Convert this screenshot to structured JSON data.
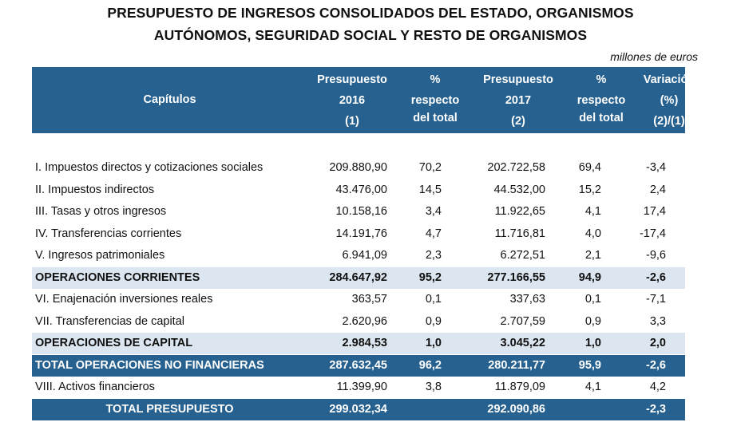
{
  "title_lines": [
    "PRESUPUESTO DE INGRESOS CONSOLIDADOS DEL ESTADO, ORGANISMOS",
    "AUTÓNOMOS, SEGURIDAD SOCIAL Y RESTO DE ORGANISMOS"
  ],
  "units": "millones de euros",
  "colors": {
    "header": "#27618f",
    "subtotal": "#dce6f0"
  },
  "headers": [
    [
      "Capítulos"
    ],
    [
      "Presupuesto",
      "2016",
      "(1)"
    ],
    [
      "%",
      "respecto",
      "del total"
    ],
    [
      "Presupuesto",
      "2017",
      "(2)"
    ],
    [
      "%",
      "respecto",
      "del total"
    ],
    [
      "Variación",
      "(%)",
      "(2)/(1)"
    ]
  ],
  "rows": [
    {
      "label": "I. Impuestos directos y cotizaciones sociales",
      "v": [
        "209.880,90",
        "70,2",
        "202.722,58",
        "69,4",
        "-3,4"
      ]
    },
    {
      "label": "II. Impuestos indirectos",
      "v": [
        "43.476,00",
        "14,5",
        "44.532,00",
        "15,2",
        "2,4"
      ]
    },
    {
      "label": "III. Tasas y otros ingresos",
      "v": [
        "10.158,16",
        "3,4",
        "11.922,65",
        "4,1",
        "17,4"
      ]
    },
    {
      "label": "IV. Transferencias corrientes",
      "v": [
        "14.191,76",
        "4,7",
        "11.716,81",
        "4,0",
        "-17,4"
      ]
    },
    {
      "label": "V. Ingresos patrimoniales",
      "v": [
        "6.941,09",
        "2,3",
        "6.272,51",
        "2,1",
        "-9,6"
      ]
    },
    {
      "label": "OPERACIONES CORRIENTES",
      "v": [
        "284.647,92",
        "95,2",
        "277.166,55",
        "94,9",
        "-2,6"
      ]
    },
    {
      "label": "VI. Enajenación inversiones reales",
      "v": [
        "363,57",
        "0,1",
        "337,63",
        "0,1",
        "-7,1"
      ]
    },
    {
      "label": "VII. Transferencias de capital",
      "v": [
        "2.620,96",
        "0,9",
        "2.707,59",
        "0,9",
        "3,3"
      ]
    },
    {
      "label": "OPERACIONES DE CAPITAL",
      "v": [
        "2.984,53",
        "1,0",
        "3.045,22",
        "1,0",
        "2,0"
      ]
    },
    {
      "label": "TOTAL OPERACIONES NO FINANCIERAS",
      "v": [
        "287.632,45",
        "96,2",
        "280.211,77",
        "95,9",
        "-2,6"
      ]
    },
    {
      "label": "VIII. Activos financieros",
      "v": [
        "11.399,90",
        "3,8",
        "11.879,09",
        "4,1",
        "4,2"
      ]
    },
    {
      "label": "TOTAL PRESUPUESTO",
      "v": [
        "299.032,34",
        "",
        "292.090,86",
        "",
        "-2,3"
      ]
    }
  ]
}
